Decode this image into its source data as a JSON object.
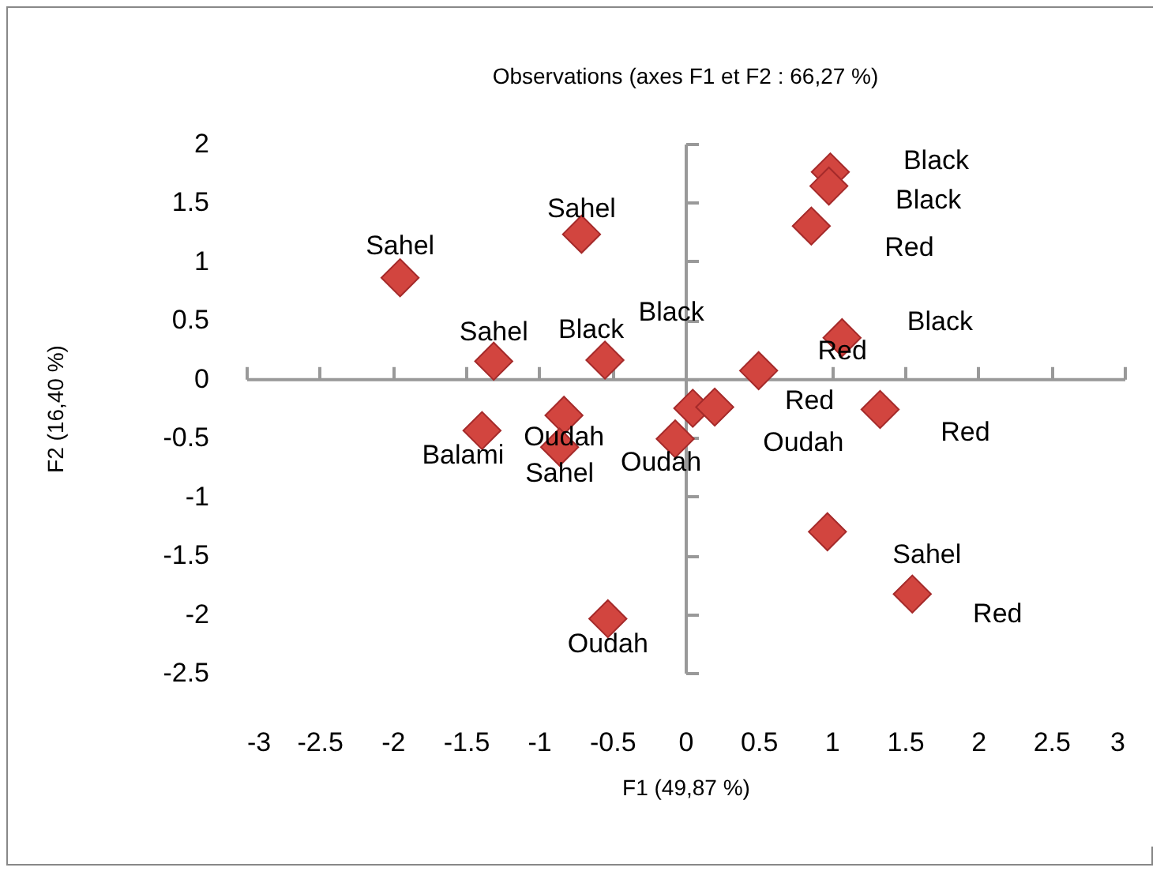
{
  "chart_data": {
    "type": "scatter",
    "title": "Observations (axes F1 et F2 : 66,27 %)",
    "xlabel": "F1 (49,87 %)",
    "ylabel": "F2 (16,40 %)",
    "x": [
      -1.95,
      -0.71,
      -1.31,
      null,
      -0.55,
      -1.39,
      -0.83,
      -0.86,
      -0.53,
      -0.07,
      0.05,
      0.2,
      0.5,
      0.99,
      0.98,
      0.86,
      1.07,
      1.33,
      0.97,
      1.55
    ],
    "series": [
      {
        "color": "#d2453f",
        "values": [
          0.86,
          1.23,
          0.15,
          null,
          0.16,
          -0.44,
          -0.31,
          -0.58,
          -2.04,
          -0.51,
          -0.25,
          -0.24,
          0.07,
          1.76,
          1.64,
          1.3,
          0.35,
          -0.26,
          -1.3,
          -1.83
        ]
      }
    ],
    "annotations": [
      {
        "text": "Sahel",
        "x": -1.95,
        "y": 0.86
      },
      {
        "text": "Sahel",
        "x": -0.71,
        "y": 1.23
      },
      {
        "text": "Sahel",
        "x": -1.31,
        "y": 0.15
      },
      {
        "text": "Black",
        "x": -0.59,
        "y": 0.12
      },
      {
        "text": "Black",
        "x": -0.55,
        "y": 0.16
      },
      {
        "text": "Balami",
        "x": -1.39,
        "y": -0.44
      },
      {
        "text": "Oudah",
        "x": -0.83,
        "y": -0.31
      },
      {
        "text": "Sahel",
        "x": -0.86,
        "y": -0.58
      },
      {
        "text": "Oudah",
        "x": -0.53,
        "y": -2.04
      },
      {
        "text": "Oudah",
        "x": -0.07,
        "y": -0.51
      },
      {
        "text": "Oudah",
        "x": 0.05,
        "y": -0.25
      },
      {
        "text": "Red",
        "x": 0.2,
        "y": -0.24
      },
      {
        "text": "Red",
        "x": 0.5,
        "y": 0.07
      },
      {
        "text": "Black",
        "x": 0.99,
        "y": 1.76
      },
      {
        "text": "Black",
        "x": 0.98,
        "y": 1.64
      },
      {
        "text": "Red",
        "x": 0.86,
        "y": 1.3
      },
      {
        "text": "Black",
        "x": 1.07,
        "y": 0.35
      },
      {
        "text": "Red",
        "x": 1.33,
        "y": -0.26
      },
      {
        "text": "Sahel",
        "x": 0.97,
        "y": -1.3
      },
      {
        "text": "Red",
        "x": 1.55,
        "y": -1.83
      }
    ],
    "xlim": [
      -3,
      3
    ],
    "xticks": [
      -3,
      -2.5,
      -2,
      -1.5,
      -1,
      -0.5,
      0,
      0.5,
      1,
      1.5,
      2,
      2.5,
      3
    ],
    "ylim": [
      -2.5,
      2
    ],
    "yticks": [
      -2.5,
      -2,
      -1.5,
      -1,
      -0.5,
      0,
      0.5,
      1,
      1.5,
      2
    ],
    "marker": "diamond"
  }
}
